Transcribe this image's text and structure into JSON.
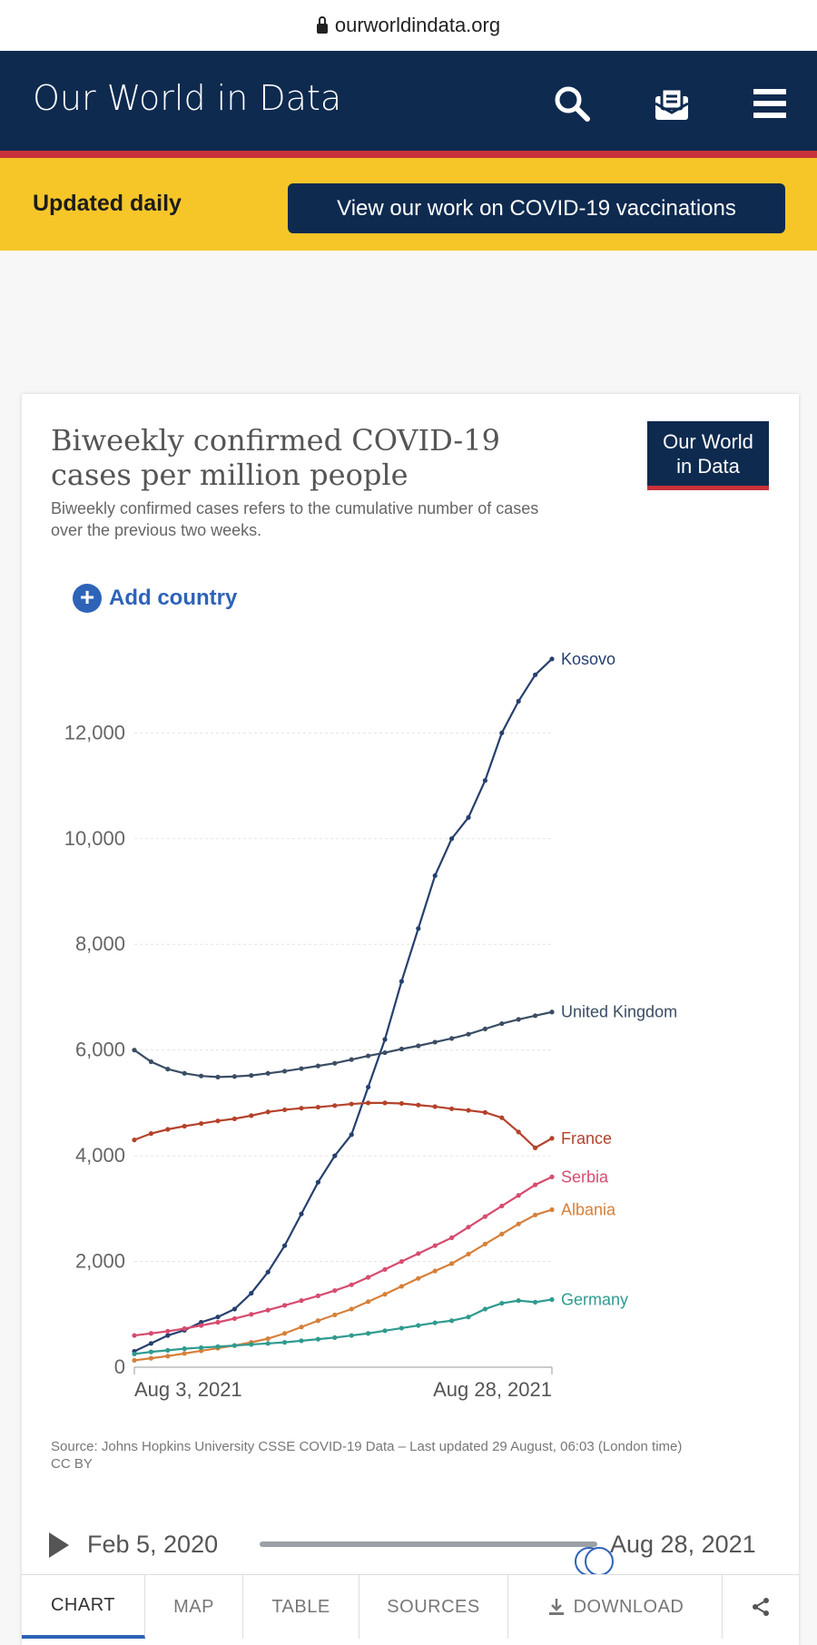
{
  "browser": {
    "url": "ourworldindata.org"
  },
  "header": {
    "brand": "Our World in Data",
    "icons": [
      "search-icon",
      "subscribe-icon",
      "menu-icon"
    ]
  },
  "banner": {
    "label": "Updated daily",
    "button": "View our work on COVID-19 vaccinations"
  },
  "logo": {
    "line1": "Our World",
    "line2": "in Data"
  },
  "card": {
    "title": "Biweekly confirmed COVID-19 cases per million people",
    "subtitle": "Biweekly confirmed cases refers to the cumulative number of cases over the previous two weeks.",
    "add_country": "Add country",
    "source": "Source: Johns Hopkins University CSSE COVID-19 Data – Last updated 29 August, 06:03 (London time)",
    "license": "CC BY"
  },
  "timeline": {
    "start": "Feb 5, 2020",
    "end": "Aug 28, 2021",
    "start_pos": 0.97,
    "end_pos": 1.0
  },
  "tabs": [
    "CHART",
    "MAP",
    "TABLE",
    "SOURCES",
    "DOWNLOAD"
  ],
  "chart_data": {
    "type": "line",
    "title": "Biweekly confirmed COVID-19 cases per million people",
    "xlabel": "",
    "ylabel": "",
    "ylim": [
      0,
      13500
    ],
    "yticks": [
      0,
      2000,
      4000,
      6000,
      8000,
      10000,
      12000
    ],
    "ytick_labels": [
      "0",
      "2,000",
      "4,000",
      "6,000",
      "8,000",
      "10,000",
      "12,000"
    ],
    "x_tick_labels": [
      "Aug 3, 2021",
      "Aug 28, 2021"
    ],
    "grid": true,
    "legend": "labels at line ends",
    "series": [
      {
        "name": "Kosovo",
        "color": "#26406e",
        "values": [
          300,
          450,
          600,
          700,
          850,
          950,
          1100,
          1400,
          1800,
          2300,
          2900,
          3500,
          4000,
          4400,
          5300,
          6200,
          7300,
          8300,
          9300,
          10000,
          10400,
          11100,
          12000,
          12600,
          13100,
          13400
        ]
      },
      {
        "name": "United Kingdom",
        "color": "#3a4d63",
        "values": [
          6000,
          5780,
          5640,
          5560,
          5510,
          5490,
          5500,
          5520,
          5560,
          5600,
          5650,
          5700,
          5750,
          5820,
          5890,
          5950,
          6020,
          6080,
          6150,
          6220,
          6300,
          6400,
          6500,
          6580,
          6650,
          6720
        ]
      },
      {
        "name": "France",
        "color": "#b4422b",
        "values": [
          4300,
          4420,
          4500,
          4560,
          4610,
          4660,
          4700,
          4760,
          4830,
          4870,
          4900,
          4920,
          4950,
          4980,
          5000,
          5000,
          4990,
          4960,
          4930,
          4890,
          4860,
          4820,
          4720,
          4450,
          4150,
          4330
        ]
      },
      {
        "name": "Serbia",
        "color": "#d64c6f",
        "values": [
          600,
          640,
          680,
          730,
          790,
          850,
          920,
          1000,
          1080,
          1170,
          1260,
          1350,
          1450,
          1560,
          1700,
          1850,
          2000,
          2150,
          2300,
          2450,
          2650,
          2850,
          3050,
          3250,
          3450,
          3600
        ]
      },
      {
        "name": "Albania",
        "color": "#d6803a",
        "values": [
          130,
          170,
          210,
          260,
          310,
          360,
          410,
          470,
          540,
          640,
          760,
          880,
          990,
          1100,
          1240,
          1380,
          1530,
          1680,
          1820,
          1960,
          2140,
          2330,
          2520,
          2710,
          2880,
          2980
        ]
      },
      {
        "name": "Germany",
        "color": "#2f9b8f",
        "values": [
          250,
          290,
          320,
          350,
          370,
          390,
          410,
          430,
          450,
          470,
          500,
          530,
          560,
          600,
          640,
          690,
          740,
          790,
          840,
          880,
          950,
          1100,
          1210,
          1260,
          1230,
          1280
        ]
      }
    ]
  }
}
